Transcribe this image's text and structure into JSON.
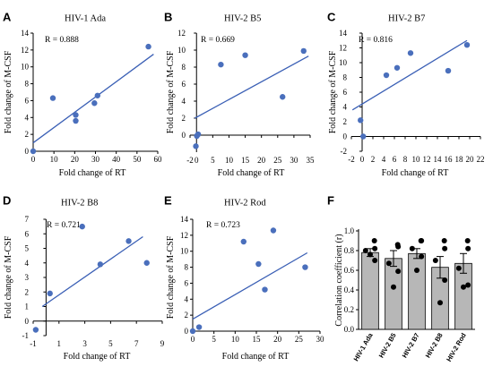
{
  "colors": {
    "point": "#4a6fbc",
    "line": "#3a5fb5",
    "bar": "#b7b7b7",
    "dot": "#000000",
    "axis": "#000000"
  },
  "chart_data": [
    {
      "panel": "A",
      "type": "scatter",
      "title": "HIV-1 Ada",
      "r_label": "R = 0.888",
      "xlabel": "Fold change of RT",
      "ylabel": "Fold change of M-CSF",
      "xlim": [
        0,
        60
      ],
      "ylim": [
        0,
        14
      ],
      "xticks": [
        0,
        10,
        20,
        30,
        40,
        50,
        60
      ],
      "yticks": [
        0,
        2,
        4,
        6,
        8,
        10,
        12,
        14
      ],
      "points": [
        [
          0,
          0
        ],
        [
          9.5,
          6.3
        ],
        [
          20.5,
          4.3
        ],
        [
          20.5,
          3.6
        ],
        [
          29.5,
          5.7
        ],
        [
          31,
          6.6
        ],
        [
          55.5,
          12.4
        ]
      ],
      "fit": [
        [
          0,
          1.0
        ],
        [
          58,
          11.5
        ]
      ]
    },
    {
      "panel": "B",
      "type": "scatter",
      "title": "HIV-2 B5",
      "r_label": "R = 0.669",
      "xlabel": "Fold change of RT",
      "ylabel": "Fold change of M-CSF",
      "xlim": [
        -2,
        35
      ],
      "ylim": [
        -2,
        12
      ],
      "xticks": [
        -2,
        0,
        5,
        10,
        15,
        20,
        25,
        30,
        35
      ],
      "yticks": [
        0,
        2,
        4,
        6,
        8,
        10,
        12
      ],
      "points": [
        [
          -0.2,
          -1.3
        ],
        [
          0.1,
          -0.1
        ],
        [
          0.5,
          0.1
        ],
        [
          7.5,
          8.3
        ],
        [
          15,
          9.4
        ],
        [
          26.5,
          4.5
        ],
        [
          33,
          9.9
        ]
      ],
      "fit": [
        [
          -0.5,
          2.0
        ],
        [
          34.5,
          9.3
        ]
      ]
    },
    {
      "panel": "C",
      "type": "scatter",
      "title": "HIV-2 B7",
      "r_label": "R = 0.816",
      "xlabel": "Fold change of RT",
      "ylabel": "Fold change of M-CSF",
      "xlim": [
        -2,
        22
      ],
      "ylim": [
        -2,
        14
      ],
      "xticks": [
        -2,
        0,
        2,
        4,
        6,
        8,
        10,
        12,
        14,
        16,
        18,
        20,
        22
      ],
      "yticks": [
        -2,
        0,
        2,
        4,
        6,
        8,
        10,
        12,
        14
      ],
      "points": [
        [
          -0.3,
          2.2
        ],
        [
          0.2,
          0
        ],
        [
          4.5,
          8.3
        ],
        [
          6.5,
          9.3
        ],
        [
          9,
          11.3
        ],
        [
          16,
          8.9
        ],
        [
          19.5,
          12.4
        ]
      ],
      "fit": [
        [
          -1.8,
          3.6
        ],
        [
          19.5,
          13.0
        ]
      ]
    },
    {
      "panel": "D",
      "type": "scatter",
      "title": "HIV-2 B8",
      "r_label": "R = 0.721",
      "xlabel": "Fold change of RT",
      "ylabel": "Fold change of M-CSF",
      "xlim": [
        -1,
        9
      ],
      "ylim": [
        -1,
        7
      ],
      "xticks": [
        -1,
        1,
        3,
        5,
        7,
        9
      ],
      "yticks": [
        -1,
        0,
        1,
        2,
        3,
        4,
        5,
        6,
        7
      ],
      "points": [
        [
          -0.8,
          -0.6
        ],
        [
          0.3,
          1.9
        ],
        [
          2.8,
          6.5
        ],
        [
          4.2,
          3.9
        ],
        [
          6.4,
          5.5
        ],
        [
          7.8,
          4.0
        ]
      ],
      "fit": [
        [
          -0.3,
          1.0
        ],
        [
          7.5,
          5.8
        ]
      ]
    },
    {
      "panel": "E",
      "type": "scatter",
      "title": "HIV-2 Rod",
      "r_label": "R = 0.723",
      "xlabel": "Fold change of RT",
      "ylabel": "Fold change of M-CSF",
      "xlim": [
        0,
        30
      ],
      "ylim": [
        0,
        14
      ],
      "xticks": [
        0,
        5,
        10,
        15,
        20,
        25,
        30
      ],
      "yticks": [
        0,
        2,
        4,
        6,
        8,
        10,
        12,
        14
      ],
      "points": [
        [
          0,
          0
        ],
        [
          1.5,
          0.5
        ],
        [
          12,
          11.2
        ],
        [
          15.5,
          8.4
        ],
        [
          17,
          5.2
        ],
        [
          19,
          12.6
        ],
        [
          26.5,
          8.0
        ]
      ],
      "fit": [
        [
          0,
          1.5
        ],
        [
          27,
          9.8
        ]
      ]
    },
    {
      "panel": "F",
      "type": "bar",
      "ylabel": "Correlation coefficient (r)",
      "ylim": [
        0,
        1
      ],
      "yticks": [
        0,
        0.2,
        0.4,
        0.6,
        0.8,
        1.0
      ],
      "categories": [
        "HIV-1 Ada",
        "HIV-2 B5",
        "HIV-2 B7",
        "HIV-2 B8",
        "HIV-2 Rod"
      ],
      "values": [
        0.78,
        0.72,
        0.77,
        0.63,
        0.67
      ],
      "errors": [
        0.04,
        0.08,
        0.05,
        0.11,
        0.1
      ],
      "points": [
        [
          0.9,
          0.82,
          0.8,
          0.7,
          0.76
        ],
        [
          0.86,
          0.84,
          0.67,
          0.59,
          0.43
        ],
        [
          0.9,
          0.9,
          0.82,
          0.74,
          0.6
        ],
        [
          0.9,
          0.82,
          0.7,
          0.5,
          0.27
        ],
        [
          0.9,
          0.82,
          0.62,
          0.45,
          0.43
        ]
      ]
    }
  ]
}
